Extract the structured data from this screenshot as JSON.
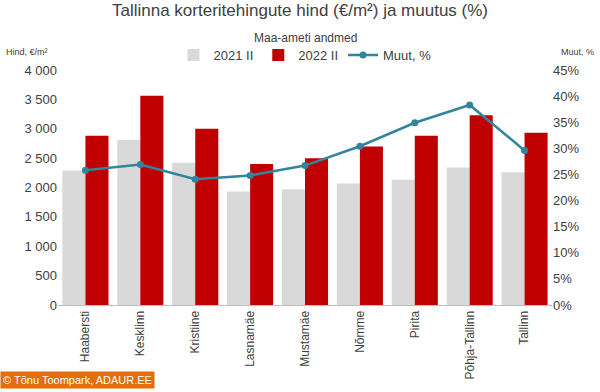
{
  "chart_data": {
    "type": "bar",
    "title": "Tallinna korteritehingute hind (€/m²) ja muutus (%)",
    "subtitle": "Maa-ameti andmed",
    "y_label": "Hind, €/m²",
    "y2_label": "Muut, %",
    "source": "© Tõnu Toompark, ADAUR.EE",
    "categories": [
      "Haabersti",
      "Kesklinn",
      "Kristiine",
      "Lasnamäe",
      "Mustamäe",
      "Nõmme",
      "Pirita",
      "Põhja-Tallinn",
      "Tallinn"
    ],
    "series": [
      {
        "name": "2021 II",
        "type": "bar",
        "color": "#d9d9d9",
        "values": [
          2290,
          2810,
          2420,
          1930,
          1970,
          2070,
          2130,
          2340,
          2260
        ]
      },
      {
        "name": "2022 II",
        "type": "bar",
        "color": "#c00000",
        "values": [
          2880,
          3560,
          3000,
          2400,
          2500,
          2700,
          2880,
          3230,
          2930
        ]
      },
      {
        "name": "Muut, %",
        "type": "line",
        "axis": "y2",
        "color": "#31859c",
        "marker": "circle",
        "values": [
          25.8,
          26.9,
          24.1,
          24.8,
          26.7,
          30.4,
          34.9,
          38.3,
          29.6
        ]
      }
    ],
    "ylim": [
      0,
      4000
    ],
    "yticks": [
      0,
      500,
      {
        "value": 1000,
        "label": "1 000"
      },
      {
        "value": 1500,
        "label": "1 500"
      },
      {
        "value": 2000,
        "label": "2 000"
      },
      {
        "value": 2500,
        "label": "2 500"
      },
      {
        "value": 3000,
        "label": "3 000"
      },
      {
        "value": 3500,
        "label": "3 500"
      },
      {
        "value": 4000,
        "label": "4 000"
      }
    ],
    "y2lim": [
      0,
      45
    ],
    "y2ticks": [
      {
        "value": 0,
        "label": "0%"
      },
      {
        "value": 5,
        "label": "5%"
      },
      {
        "value": 10,
        "label": "10%"
      },
      {
        "value": 15,
        "label": "15%"
      },
      {
        "value": 20,
        "label": "20%"
      },
      {
        "value": 25,
        "label": "25%"
      },
      {
        "value": 30,
        "label": "30%"
      },
      {
        "value": 35,
        "label": "35%"
      },
      {
        "value": 40,
        "label": "40%"
      },
      {
        "value": 45,
        "label": "45%"
      }
    ],
    "grid": false,
    "legend": "top",
    "data_labels": false
  }
}
